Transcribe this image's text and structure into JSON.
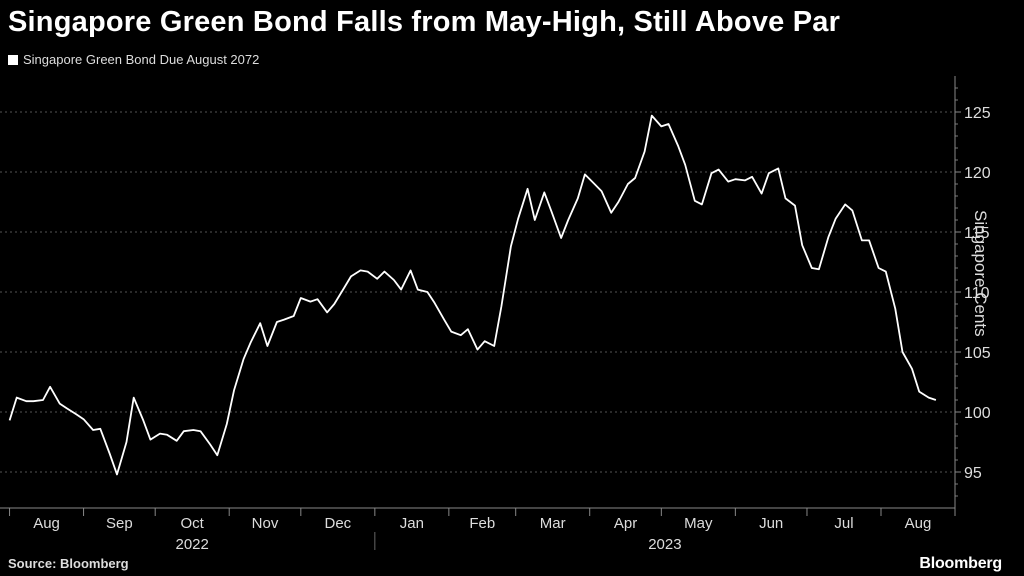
{
  "header": {
    "title": "Singapore Green Bond Falls from May-High, Still Above Par",
    "legend_label": "Singapore Green Bond Due August 2072"
  },
  "footer": {
    "source": "Source: Bloomberg",
    "brand": "Bloomberg"
  },
  "colors": {
    "background": "#000000",
    "line": "#ffffff",
    "grid": "#555555"
  },
  "chart_data": {
    "type": "line",
    "title": "Singapore Green Bond Falls from May-High, Still Above Par",
    "ylabel": "Singapore Cents",
    "ylim": [
      92,
      128
    ],
    "yticks": [
      95,
      100,
      105,
      110,
      115,
      120,
      125
    ],
    "ytick_labels": [
      "95",
      "100",
      "105",
      "110",
      "115",
      "120",
      "125"
    ],
    "y_axis_side": "right",
    "grid": "horizontal dashed",
    "legend_position": "top-left",
    "x_month_labels": [
      "Aug",
      "Sep",
      "Oct",
      "Nov",
      "Dec",
      "Jan",
      "Feb",
      "Mar",
      "Apr",
      "May",
      "Jun",
      "Jul",
      "Aug"
    ],
    "x_year_labels": [
      "2022",
      "2023"
    ],
    "series": [
      {
        "name": "Singapore Green Bond Due August 2072",
        "x": [
          "2022-08-01",
          "2022-08-04",
          "2022-08-08",
          "2022-08-11",
          "2022-08-15",
          "2022-08-18",
          "2022-08-22",
          "2022-08-25",
          "2022-08-29",
          "2022-09-01",
          "2022-09-05",
          "2022-09-08",
          "2022-09-12",
          "2022-09-15",
          "2022-09-19",
          "2022-09-22",
          "2022-09-26",
          "2022-09-29",
          "2022-10-03",
          "2022-10-06",
          "2022-10-10",
          "2022-10-13",
          "2022-10-17",
          "2022-10-20",
          "2022-10-24",
          "2022-10-27",
          "2022-10-31",
          "2022-11-03",
          "2022-11-07",
          "2022-11-10",
          "2022-11-14",
          "2022-11-17",
          "2022-11-21",
          "2022-11-24",
          "2022-11-28",
          "2022-12-01",
          "2022-12-05",
          "2022-12-08",
          "2022-12-12",
          "2022-12-15",
          "2022-12-19",
          "2022-12-22",
          "2022-12-26",
          "2022-12-29",
          "2023-01-02",
          "2023-01-05",
          "2023-01-09",
          "2023-01-12",
          "2023-01-16",
          "2023-01-19",
          "2023-01-23",
          "2023-01-26",
          "2023-01-30",
          "2023-02-02",
          "2023-02-06",
          "2023-02-09",
          "2023-02-13",
          "2023-02-16",
          "2023-02-20",
          "2023-02-23",
          "2023-02-27",
          "2023-03-02",
          "2023-03-06",
          "2023-03-09",
          "2023-03-13",
          "2023-03-16",
          "2023-03-20",
          "2023-03-23",
          "2023-03-27",
          "2023-03-30",
          "2023-04-03",
          "2023-04-06",
          "2023-04-10",
          "2023-04-13",
          "2023-04-17",
          "2023-04-20",
          "2023-04-24",
          "2023-04-27",
          "2023-05-01",
          "2023-05-04",
          "2023-05-08",
          "2023-05-11",
          "2023-05-15",
          "2023-05-18",
          "2023-05-22",
          "2023-05-25",
          "2023-05-29",
          "2023-06-01",
          "2023-06-05",
          "2023-06-08",
          "2023-06-12",
          "2023-06-15",
          "2023-06-19",
          "2023-06-22",
          "2023-06-26",
          "2023-06-29",
          "2023-07-03",
          "2023-07-06",
          "2023-07-10",
          "2023-07-13",
          "2023-07-17",
          "2023-07-20",
          "2023-07-24",
          "2023-07-27",
          "2023-07-31",
          "2023-08-03",
          "2023-08-07",
          "2023-08-10",
          "2023-08-14",
          "2023-08-17",
          "2023-08-21",
          "2023-08-24"
        ],
        "y": [
          99.3,
          101.2,
          100.9,
          100.9,
          101.0,
          102.1,
          100.7,
          100.3,
          99.8,
          99.4,
          98.5,
          98.6,
          96.5,
          94.8,
          97.5,
          101.2,
          99.3,
          97.7,
          98.2,
          98.1,
          97.6,
          98.4,
          98.5,
          98.4,
          97.3,
          96.4,
          99.0,
          101.8,
          104.4,
          105.8,
          107.4,
          105.5,
          107.5,
          107.7,
          108.0,
          109.5,
          109.2,
          109.4,
          108.3,
          109.0,
          110.3,
          111.3,
          111.8,
          111.7,
          111.1,
          111.7,
          111.0,
          110.2,
          111.8,
          110.2,
          110.0,
          109.1,
          107.7,
          106.7,
          106.4,
          106.9,
          105.2,
          105.9,
          105.5,
          108.8,
          113.8,
          116.1,
          118.6,
          116.0,
          118.3,
          116.7,
          114.5,
          116.0,
          117.8,
          119.8,
          119.0,
          118.4,
          116.6,
          117.5,
          119.0,
          119.5,
          121.7,
          124.7,
          123.8,
          124.0,
          122.2,
          120.6,
          117.6,
          117.3,
          119.9,
          120.2,
          119.2,
          119.4,
          119.3,
          119.6,
          118.2,
          119.9,
          120.3,
          117.8,
          117.2,
          113.9,
          112.0,
          111.9,
          114.6,
          116.1,
          117.3,
          116.8,
          114.3,
          114.3,
          112.0,
          111.7,
          108.6,
          105.0,
          103.6,
          101.7,
          101.2,
          101.0
        ]
      }
    ]
  }
}
